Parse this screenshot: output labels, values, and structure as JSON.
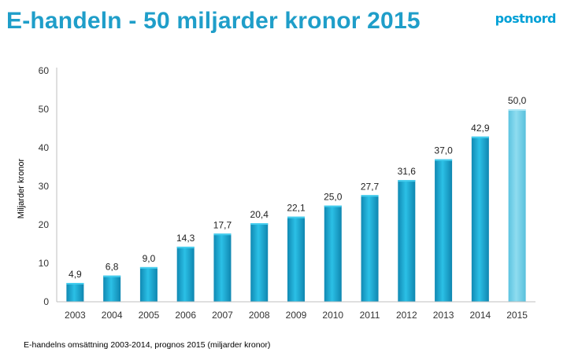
{
  "header": {
    "title": "E-handeln - 50 miljarder kronor 2015",
    "logo_text": "postnord"
  },
  "footnote": "E-handelns omsättning 2003-2014, prognos 2015 (miljarder kronor)",
  "colors": {
    "title": "#1f9ec9",
    "bar_actual": "#1aa6cf",
    "bar_forecast": "#6ecfe6",
    "axis": "#bfbfbf"
  },
  "chart_data": {
    "type": "bar",
    "title": "",
    "xlabel": "",
    "ylabel": "Miljarder kronor",
    "ylim": [
      0,
      60
    ],
    "yticks": [
      0,
      10,
      20,
      30,
      40,
      50,
      60
    ],
    "grid": false,
    "categories": [
      "2003",
      "2004",
      "2005",
      "2006",
      "2007",
      "2008",
      "2009",
      "2010",
      "2011",
      "2012",
      "2013",
      "2014",
      "2015"
    ],
    "values": [
      4.9,
      6.8,
      9.0,
      14.3,
      17.7,
      20.4,
      22.1,
      25.0,
      27.7,
      31.6,
      37.0,
      42.9,
      50.0
    ],
    "value_labels": [
      "4,9",
      "6,8",
      "9,0",
      "14,3",
      "17,7",
      "20,4",
      "22,1",
      "25,0",
      "27,7",
      "31,6",
      "37,0",
      "42,9",
      "50,0"
    ],
    "forecast_categories": [
      "2015"
    ]
  }
}
